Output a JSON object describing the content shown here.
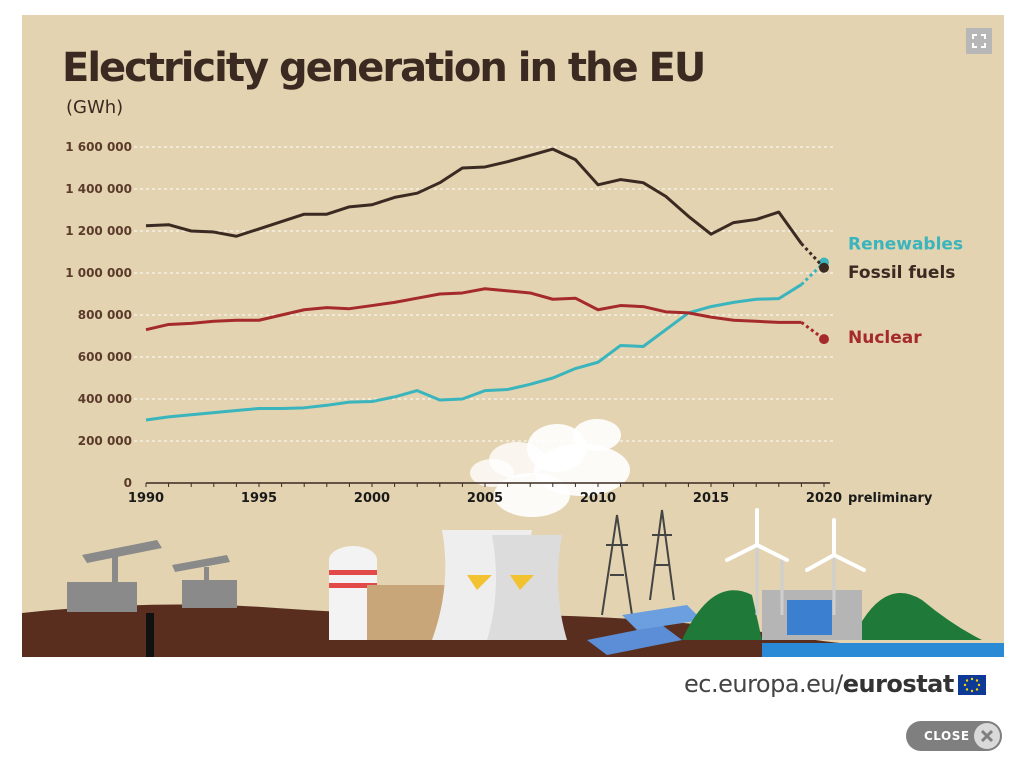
{
  "page": {
    "footer_site": "ec.europa.eu/",
    "footer_brand": "eurostat",
    "close_label": "CLOSE",
    "icons": {
      "expand": "expand-icon",
      "close": "close-icon",
      "flag": "eu-flag-icon"
    }
  },
  "chart_data": {
    "type": "line",
    "title": "Electricity generation in the EU",
    "ylabel": "(GWh)",
    "ylim": [
      0,
      1600000
    ],
    "xlim": [
      1990,
      2020
    ],
    "yticks": [
      0,
      200000,
      400000,
      600000,
      800000,
      1000000,
      1200000,
      1400000,
      1600000
    ],
    "ytick_labels": [
      "0",
      "200 000",
      "400 000",
      "600 000",
      "800 000",
      "1 000 000",
      "1 200 000",
      "1 400 000",
      "1 600 000"
    ],
    "xticks": [
      1990,
      1995,
      2000,
      2005,
      2010,
      2015,
      2020
    ],
    "xtick_labels": [
      "1990",
      "1995",
      "2000",
      "2005",
      "2010",
      "2015",
      "2020"
    ],
    "x_note": "preliminary",
    "grid": true,
    "x": [
      1990,
      1991,
      1992,
      1993,
      1994,
      1995,
      1996,
      1997,
      1998,
      1999,
      2000,
      2001,
      2002,
      2003,
      2004,
      2005,
      2006,
      2007,
      2008,
      2009,
      2010,
      2011,
      2012,
      2013,
      2014,
      2015,
      2016,
      2017,
      2018,
      2019,
      2020
    ],
    "series": [
      {
        "name": "Renewables",
        "color": "#3ab5bd",
        "values": [
          300000,
          315000,
          325000,
          335000,
          345000,
          355000,
          355000,
          358000,
          370000,
          385000,
          388000,
          410000,
          440000,
          395000,
          400000,
          440000,
          445000,
          470000,
          500000,
          545000,
          575000,
          655000,
          650000,
          730000,
          810000,
          840000,
          860000,
          875000,
          878000,
          945000,
          1050000
        ]
      },
      {
        "name": "Fossil fuels",
        "color": "#3b2a22",
        "values": [
          1225000,
          1230000,
          1200000,
          1195000,
          1175000,
          1210000,
          1245000,
          1280000,
          1280000,
          1315000,
          1325000,
          1360000,
          1380000,
          1430000,
          1500000,
          1505000,
          1530000,
          1560000,
          1590000,
          1540000,
          1420000,
          1445000,
          1430000,
          1365000,
          1270000,
          1185000,
          1240000,
          1255000,
          1290000,
          1140000,
          1025000
        ]
      },
      {
        "name": "Nuclear",
        "color": "#a52a2a",
        "values": [
          730000,
          755000,
          760000,
          770000,
          775000,
          775000,
          800000,
          825000,
          835000,
          830000,
          845000,
          860000,
          880000,
          900000,
          905000,
          925000,
          915000,
          905000,
          875000,
          880000,
          825000,
          845000,
          840000,
          815000,
          810000,
          790000,
          775000,
          770000,
          765000,
          765000,
          685000
        ]
      }
    ]
  }
}
